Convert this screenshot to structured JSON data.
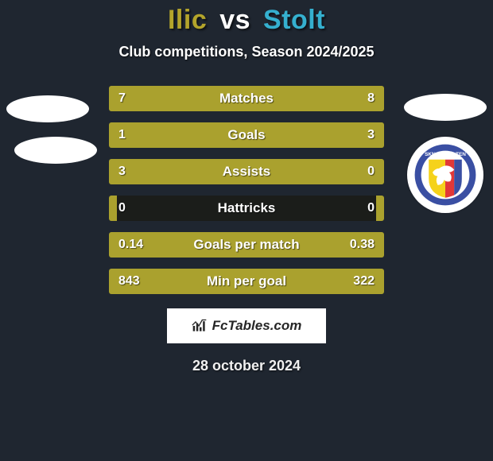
{
  "background_color": "#1f2630",
  "title": {
    "player1": "Ilic",
    "vs": "vs",
    "player2": "Stolt",
    "color_p1": "#b3a42b",
    "color_vs": "#ffffff",
    "color_p2": "#35b0cf"
  },
  "subtitle": "Club competitions, Season 2024/2025",
  "bar_track_color": "#1b1d1a",
  "left_fill_color": "#aaa12e",
  "right_fill_color": "#aaa12e",
  "bars": [
    {
      "label": "Matches",
      "left": "7",
      "right": "8",
      "left_pct": 46.7,
      "right_pct": 53.3
    },
    {
      "label": "Goals",
      "left": "1",
      "right": "3",
      "left_pct": 25.0,
      "right_pct": 75.0
    },
    {
      "label": "Assists",
      "left": "3",
      "right": "0",
      "left_pct": 100.0,
      "right_pct": 0.0
    },
    {
      "label": "Hattricks",
      "left": "0",
      "right": "0",
      "left_pct": 3.0,
      "right_pct": 3.0
    },
    {
      "label": "Goals per match",
      "left": "0.14",
      "right": "0.38",
      "left_pct": 26.9,
      "right_pct": 73.1
    },
    {
      "label": "Min per goal",
      "left": "843",
      "right": "322",
      "left_pct": 72.4,
      "right_pct": 27.6
    }
  ],
  "watermark": "FcTables.com",
  "date": "28 october 2024",
  "club_badge": {
    "name": "SKN St. Pölten",
    "outer_ring": "#3a4fa3",
    "stripes": [
      "#f5d21b",
      "#e13838",
      "#3a4fa3"
    ],
    "bird_color": "#ffffff",
    "text_color": "#ffffff"
  }
}
